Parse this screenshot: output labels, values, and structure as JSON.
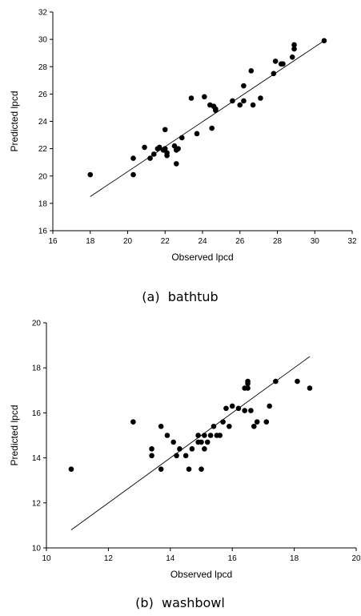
{
  "chart_data": [
    {
      "type": "scatter",
      "caption": "(a)  bathtub",
      "xlabel": "Observed lpcd",
      "ylabel": "Predicted lpcd",
      "xlim": [
        16,
        32
      ],
      "ylim": [
        16,
        32
      ],
      "xticks": [
        "16",
        "18",
        "20",
        "22",
        "24",
        "26",
        "28",
        "30",
        "32"
      ],
      "yticks": [
        "16",
        "18",
        "20",
        "22",
        "24",
        "26",
        "28",
        "30",
        "32"
      ],
      "points": [
        [
          18.0,
          20.1
        ],
        [
          20.3,
          20.1
        ],
        [
          20.3,
          21.3
        ],
        [
          20.9,
          22.1
        ],
        [
          21.2,
          21.3
        ],
        [
          21.4,
          21.6
        ],
        [
          21.6,
          22.0
        ],
        [
          21.7,
          22.1
        ],
        [
          21.9,
          21.9
        ],
        [
          22.0,
          23.4
        ],
        [
          22.0,
          22.0
        ],
        [
          22.1,
          21.7
        ],
        [
          22.1,
          21.5
        ],
        [
          22.5,
          22.2
        ],
        [
          22.6,
          20.9
        ],
        [
          22.6,
          21.9
        ],
        [
          22.7,
          22.0
        ],
        [
          22.9,
          22.8
        ],
        [
          23.4,
          25.7
        ],
        [
          23.7,
          23.1
        ],
        [
          24.1,
          25.8
        ],
        [
          24.4,
          25.2
        ],
        [
          24.5,
          23.5
        ],
        [
          24.6,
          25.1
        ],
        [
          24.7,
          24.9
        ],
        [
          24.7,
          24.8
        ],
        [
          25.6,
          25.5
        ],
        [
          26.0,
          25.2
        ],
        [
          26.2,
          25.5
        ],
        [
          26.2,
          26.6
        ],
        [
          26.6,
          27.7
        ],
        [
          26.7,
          25.2
        ],
        [
          27.1,
          25.7
        ],
        [
          27.8,
          27.5
        ],
        [
          27.9,
          28.4
        ],
        [
          28.2,
          28.2
        ],
        [
          28.3,
          28.2
        ],
        [
          28.8,
          28.7
        ],
        [
          28.9,
          29.3
        ],
        [
          28.9,
          29.6
        ],
        [
          30.5,
          29.9
        ]
      ],
      "fit_line": [
        [
          18.0,
          18.5
        ],
        [
          30.5,
          29.9
        ]
      ]
    },
    {
      "type": "scatter",
      "caption": "(b)  washbowl",
      "xlabel": "Observed lpcd",
      "ylabel": "Predicted lpcd",
      "xlim": [
        10,
        20
      ],
      "ylim": [
        10,
        20
      ],
      "xticks": [
        "10",
        "12",
        "14",
        "16",
        "18",
        "20"
      ],
      "yticks": [
        "10",
        "12",
        "14",
        "16",
        "18",
        "20"
      ],
      "points": [
        [
          10.8,
          13.5
        ],
        [
          12.8,
          15.6
        ],
        [
          13.4,
          14.1
        ],
        [
          13.4,
          14.4
        ],
        [
          13.7,
          13.5
        ],
        [
          13.7,
          15.4
        ],
        [
          13.9,
          15.0
        ],
        [
          14.1,
          14.7
        ],
        [
          14.2,
          14.1
        ],
        [
          14.3,
          14.4
        ],
        [
          14.5,
          14.1
        ],
        [
          14.6,
          13.5
        ],
        [
          14.7,
          14.4
        ],
        [
          14.9,
          14.7
        ],
        [
          14.9,
          15.0
        ],
        [
          15.0,
          13.5
        ],
        [
          15.0,
          14.7
        ],
        [
          15.1,
          15.0
        ],
        [
          15.1,
          14.4
        ],
        [
          15.2,
          14.7
        ],
        [
          15.3,
          15.0
        ],
        [
          15.4,
          15.4
        ],
        [
          15.5,
          15.0
        ],
        [
          15.6,
          15.0
        ],
        [
          15.7,
          15.6
        ],
        [
          15.8,
          16.2
        ],
        [
          15.9,
          15.4
        ],
        [
          16.0,
          16.3
        ],
        [
          16.2,
          16.2
        ],
        [
          16.4,
          16.1
        ],
        [
          16.4,
          17.1
        ],
        [
          16.5,
          17.1
        ],
        [
          16.5,
          17.3
        ],
        [
          16.5,
          17.4
        ],
        [
          16.6,
          16.1
        ],
        [
          16.7,
          15.4
        ],
        [
          16.8,
          15.6
        ],
        [
          17.1,
          15.6
        ],
        [
          17.2,
          16.3
        ],
        [
          17.4,
          17.4
        ],
        [
          18.1,
          17.4
        ],
        [
          18.5,
          17.1
        ]
      ],
      "fit_line": [
        [
          10.8,
          10.8
        ],
        [
          18.5,
          18.5
        ]
      ]
    }
  ]
}
